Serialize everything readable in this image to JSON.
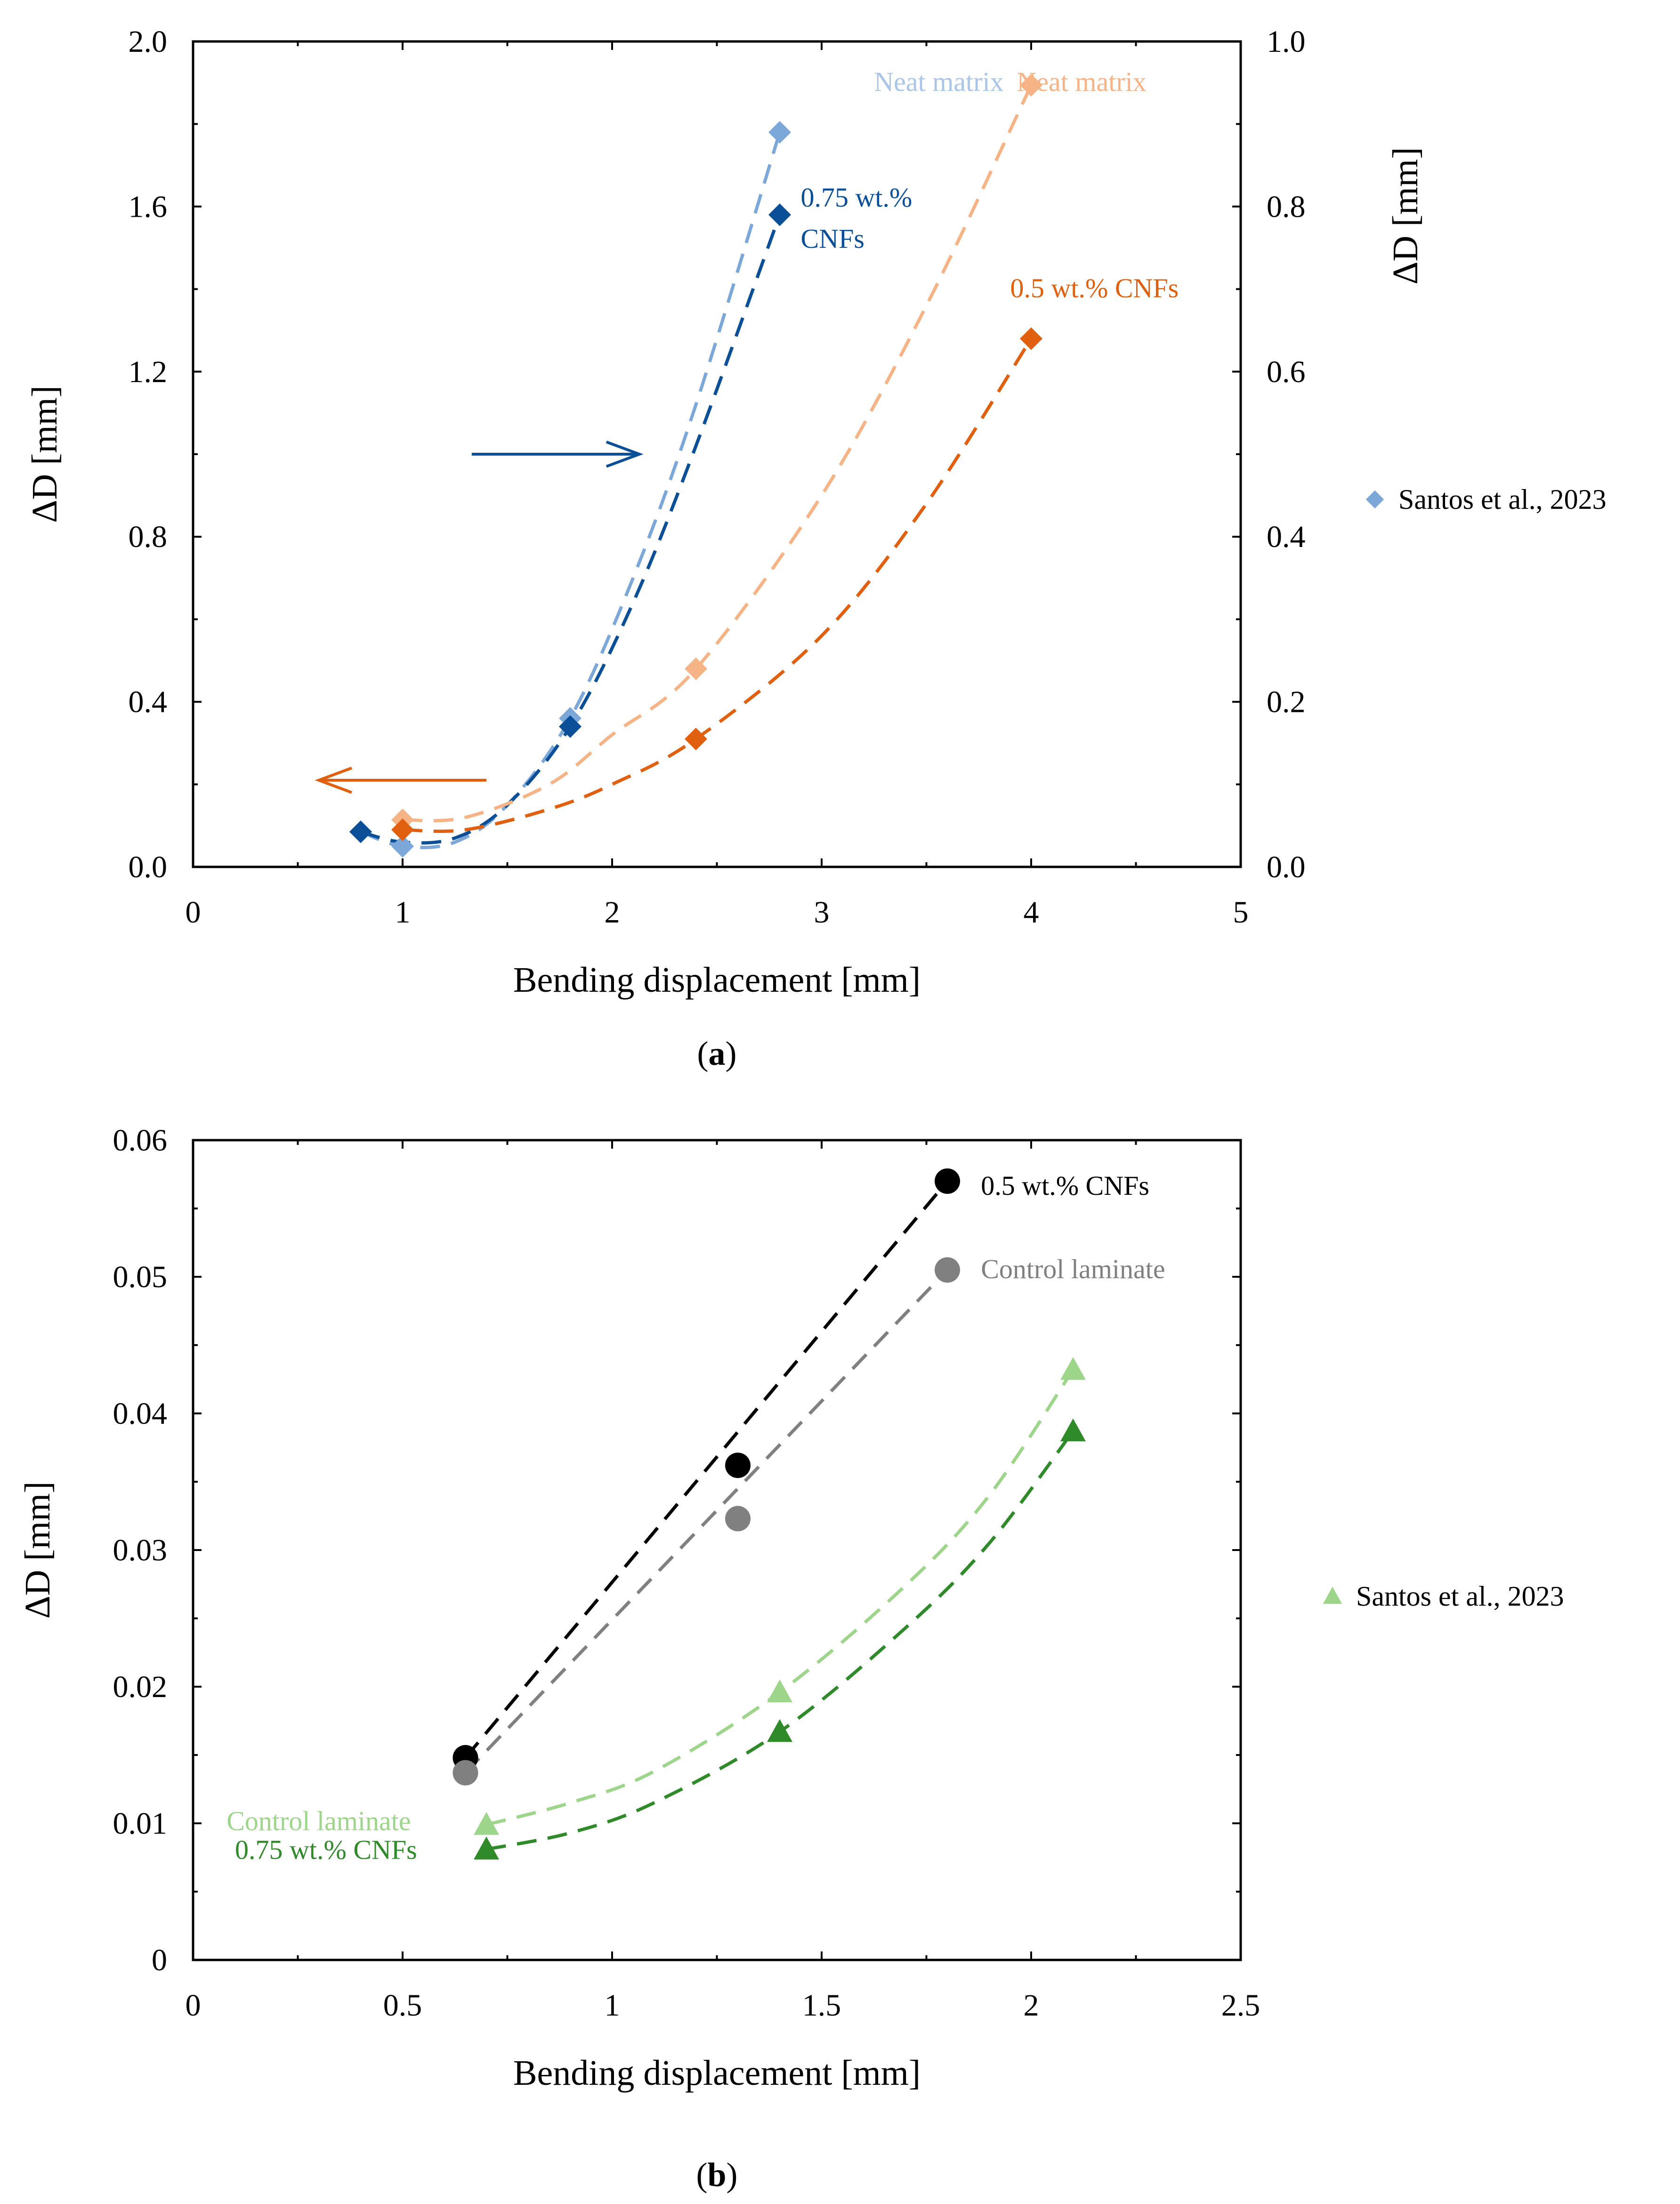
{
  "chart_data": [
    {
      "panel": "(a)",
      "panel_letter": "a",
      "type": "scatter",
      "xlabel": "Bending displacement [mm]",
      "ylabel_left": "ΔD [mm]",
      "ylabel_right": "ΔD [mm]",
      "xlim": [
        0,
        5
      ],
      "xticks": [
        "0",
        "1",
        "2",
        "3",
        "4",
        "5"
      ],
      "ylim_left": [
        0,
        2.0
      ],
      "yticks_left": [
        "0.0",
        "0.4",
        "0.8",
        "1.2",
        "1.6",
        "2.0"
      ],
      "ylim_right": [
        0,
        1.0
      ],
      "yticks_right": [
        "0.0",
        "0.2",
        "0.4",
        "0.6",
        "0.8",
        "1.0"
      ],
      "legend": "Santos et al., 2023",
      "series": [
        {
          "name": "Neat matrix",
          "axis": "left",
          "color": "#7ba7d9",
          "marker": "diamond",
          "x": [
            0.8,
            1.0,
            1.8,
            2.8
          ],
          "y": [
            0.085,
            0.05,
            0.36,
            1.78
          ],
          "fit": [
            [
              0.8,
              0.085
            ],
            [
              1.0,
              0.05
            ],
            [
              1.25,
              0.06
            ],
            [
              1.5,
              0.15
            ],
            [
              1.8,
              0.36
            ],
            [
              2.1,
              0.7
            ],
            [
              2.4,
              1.12
            ],
            [
              2.8,
              1.78
            ]
          ]
        },
        {
          "name": "0.75 wt.% CNFs",
          "axis": "left",
          "color": "#0a4f97",
          "marker": "diamond",
          "x": [
            0.8,
            1.8,
            2.8
          ],
          "y": [
            0.085,
            0.34,
            1.58
          ],
          "fit": [
            [
              0.8,
              0.085
            ],
            [
              1.0,
              0.06
            ],
            [
              1.25,
              0.07
            ],
            [
              1.5,
              0.15
            ],
            [
              1.8,
              0.34
            ],
            [
              2.1,
              0.64
            ],
            [
              2.4,
              1.02
            ],
            [
              2.8,
              1.58
            ]
          ]
        },
        {
          "name": "Neat matrix",
          "axis": "right",
          "color": "#f6b385",
          "marker": "diamond",
          "x": [
            1.0,
            2.4,
            4.0
          ],
          "y": [
            0.057,
            0.24,
            0.947
          ],
          "fit": [
            [
              1.0,
              0.057
            ],
            [
              1.3,
              0.06
            ],
            [
              1.7,
              0.1
            ],
            [
              2.0,
              0.16
            ],
            [
              2.4,
              0.24
            ],
            [
              3.0,
              0.45
            ],
            [
              3.5,
              0.68
            ],
            [
              4.0,
              0.947
            ]
          ]
        },
        {
          "name": "0.5 wt.% CNFs",
          "axis": "right",
          "color": "#e0600f",
          "marker": "diamond",
          "x": [
            1.0,
            2.4,
            4.0
          ],
          "y": [
            0.045,
            0.155,
            0.64
          ],
          "fit": [
            [
              1.0,
              0.045
            ],
            [
              1.3,
              0.045
            ],
            [
              1.7,
              0.07
            ],
            [
              2.0,
              0.1
            ],
            [
              2.4,
              0.155
            ],
            [
              3.0,
              0.28
            ],
            [
              3.5,
              0.44
            ],
            [
              4.0,
              0.64
            ]
          ]
        }
      ],
      "annotations": [
        {
          "text": "Neat matrix",
          "color": "#a9c5e8",
          "x": 3.25,
          "y": 1.88
        },
        {
          "text": "Neat matrix",
          "color": "#f6b385",
          "x": 4.55,
          "y": 1.88
        },
        {
          "text": "0.75 wt.%",
          "color": "#0a4f97",
          "x": 2.9,
          "y": 1.6
        },
        {
          "text": "CNFs",
          "color": "#0a4f97",
          "x": 2.9,
          "y": 1.5
        },
        {
          "text": "0.5 wt.% CNFs",
          "color": "#e0600f",
          "x": 3.9,
          "y": 1.38
        }
      ],
      "arrows": [
        {
          "direction": "right",
          "color": "#0a4f97",
          "x_from": 1.33,
          "x_to": 2.13,
          "y": 1.0
        },
        {
          "direction": "left",
          "color": "#e0600f",
          "x_from": 1.4,
          "x_to": 0.6,
          "y": 0.21
        }
      ]
    },
    {
      "panel": "(b)",
      "panel_letter": "b",
      "type": "scatter",
      "xlabel": "Bending displacement [mm]",
      "ylabel_left": "ΔD [mm]",
      "xlim": [
        0,
        2.5
      ],
      "xticks": [
        "0",
        "0.5",
        "1",
        "1.5",
        "2",
        "2.5"
      ],
      "ylim_left": [
        0,
        0.06
      ],
      "yticks_left": [
        "0",
        "0.01",
        "0.02",
        "0.03",
        "0.04",
        "0.05",
        "0.06"
      ],
      "legend": "Santos et al., 2023",
      "series": [
        {
          "name": "0.5 wt.% CNFs",
          "color": "#000000",
          "marker": "circle",
          "x": [
            0.65,
            1.3,
            1.8
          ],
          "y": [
            0.0148,
            0.0362,
            0.057
          ],
          "fit": [
            [
              0.65,
              0.0148
            ],
            [
              1.8,
              0.057
            ]
          ]
        },
        {
          "name": "Control laminate",
          "color": "#808080",
          "marker": "circle",
          "x": [
            0.65,
            1.3,
            1.8
          ],
          "y": [
            0.0137,
            0.0323,
            0.0505
          ],
          "fit": [
            [
              0.65,
              0.0137
            ],
            [
              1.8,
              0.0505
            ]
          ]
        },
        {
          "name": "Control laminate",
          "color": "#9dd58a",
          "marker": "triangle",
          "x": [
            0.7,
            1.4,
            2.1
          ],
          "y": [
            0.0099,
            0.0196,
            0.0432
          ],
          "fit": [
            [
              0.7,
              0.0099
            ],
            [
              0.9,
              0.0115
            ],
            [
              1.1,
              0.0138
            ],
            [
              1.4,
              0.0196
            ],
            [
              1.7,
              0.0274
            ],
            [
              1.9,
              0.034
            ],
            [
              2.1,
              0.0432
            ]
          ]
        },
        {
          "name": "0.75 wt.% CNFs",
          "color": "#2f8a2a",
          "marker": "triangle",
          "x": [
            0.7,
            1.4,
            2.1
          ],
          "y": [
            0.0081,
            0.0167,
            0.0387
          ],
          "fit": [
            [
              0.7,
              0.0081
            ],
            [
              0.9,
              0.0093
            ],
            [
              1.1,
              0.0115
            ],
            [
              1.4,
              0.0167
            ],
            [
              1.7,
              0.0243
            ],
            [
              1.9,
              0.0305
            ],
            [
              2.1,
              0.0387
            ]
          ]
        }
      ],
      "annotations": [
        {
          "text": "0.5 wt.% CNFs",
          "color": "#000000",
          "x": 1.88,
          "y": 0.056
        },
        {
          "text": "Control laminate",
          "color": "#808080",
          "x": 1.88,
          "y": 0.0499
        },
        {
          "text": "Control laminate",
          "color": "#9dd58a",
          "x": 0.08,
          "y": 0.0095
        },
        {
          "text": "0.75 wt.% CNFs",
          "color": "#2f8a2a",
          "x": 0.1,
          "y": 0.0074
        }
      ]
    }
  ]
}
